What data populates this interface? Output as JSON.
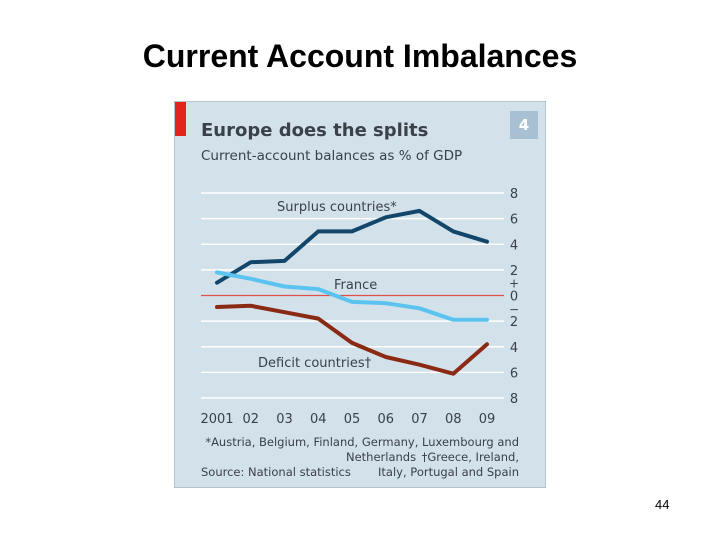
{
  "slide": {
    "title": "Current Account Imbalances",
    "page_number": "44"
  },
  "figure": {
    "chart_number": "4",
    "footnote_line1": "*Austria, Belgium, Finland, Germany, Luxembourg and",
    "footnote_line2a": "Netherlands",
    "footnote_line2b": "†Greece, Ireland,",
    "source": "Source: National statistics",
    "footnote_line3": "Italy, Portugal and Spain",
    "colors": {
      "background": "#d3e1ea",
      "accent": "#e1251b",
      "surplus": "#12466a",
      "france": "#5bc3ef",
      "deficit": "#8a2a14",
      "zero_line": "#e0504a",
      "text": "#3a4148"
    }
  },
  "chart_data": {
    "type": "line",
    "title": "Europe does the splits",
    "subtitle": "Current-account balances as % of GDP",
    "x": [
      "2001",
      "02",
      "03",
      "04",
      "05",
      "06",
      "07",
      "08",
      "09"
    ],
    "y_ticks": [
      "8",
      "6",
      "4",
      "2",
      "0",
      "2",
      "4",
      "6",
      "8"
    ],
    "y_sign_marks": [
      "+",
      "−"
    ],
    "ylim": [
      -8,
      8
    ],
    "grid": true,
    "series": [
      {
        "name": "Surplus countries*",
        "values": [
          1.0,
          2.6,
          2.7,
          5.0,
          5.0,
          6.1,
          6.6,
          5.0,
          4.2
        ]
      },
      {
        "name": "France",
        "values": [
          1.8,
          1.3,
          0.7,
          0.5,
          -0.5,
          -0.6,
          -1.0,
          -1.9,
          -1.9
        ]
      },
      {
        "name": "Deficit countries†",
        "values": [
          -0.9,
          -0.8,
          -1.3,
          -1.8,
          -3.7,
          -4.8,
          -5.4,
          -6.1,
          -3.8
        ]
      }
    ]
  }
}
